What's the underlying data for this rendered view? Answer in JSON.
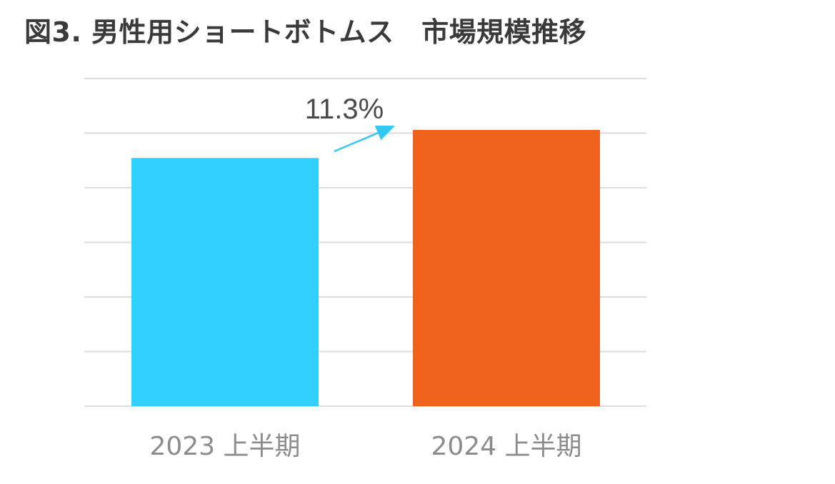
{
  "title": "図3. 男性用ショートボトムス　市場規模推移",
  "chart_data": {
    "type": "bar",
    "categories": [
      "2023 上半期",
      "2024 上半期"
    ],
    "values": [
      100,
      111.3
    ],
    "ylim": [
      0,
      132
    ],
    "grid": true,
    "yticks_labeled": false,
    "colors": [
      "#31d0ff",
      "#ee621b"
    ],
    "annotation": {
      "text": "11.3%",
      "from": 0,
      "to": 1,
      "arrow_color": "#31c8f5"
    }
  }
}
